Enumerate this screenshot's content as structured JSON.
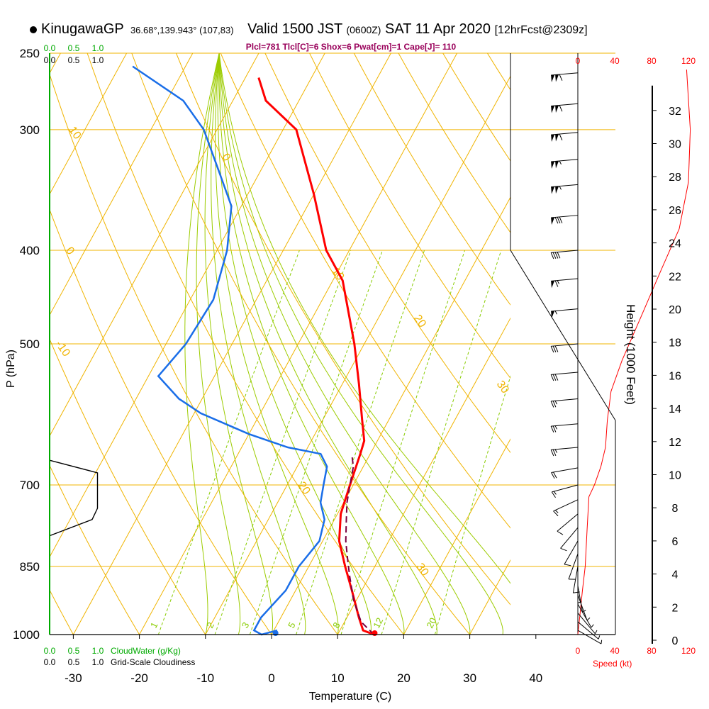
{
  "header": {
    "station": "KinugawaGP",
    "coords": "36.68°,139.943° (107,83)",
    "valid_prefix": "Valid 1500 JST",
    "valid_utc": "(0600Z)",
    "valid_date": "SAT 11 Apr 2020",
    "forecast": "[12hrFcst@2309z]"
  },
  "indices": "Plcl=781 Tlcl[C]=6 Shox=6 Pwat[cm]=1 Cape[J]= 110",
  "colors": {
    "temperature": "#ff0000",
    "dewpoint": "#1a6ee8",
    "parcel": "#7a0040",
    "isobar": "#f0b400",
    "dry_adiabat": "#f0b400",
    "moist_adiabat": "#9ccc00",
    "mixing_ratio": "#88cc00",
    "cloud": "#00aa00",
    "speed": "#ff0000",
    "indices": "#99005a"
  },
  "chart_data": {
    "type": "skew-t",
    "title": "KinugawaGP Valid 1500 JST (0600Z) SAT 11 Apr 2020",
    "xlabel": "Temperature (C)",
    "ylabel": "P (hPa)",
    "right_label": "Height (1000 Feet)",
    "xlim": [
      -34,
      48
    ],
    "ylim": [
      1000,
      250
    ],
    "pressure_ticks": [
      "250",
      "300",
      "400",
      "500",
      "700",
      "850",
      "1000"
    ],
    "isobars": [
      250,
      300,
      400,
      500,
      700,
      850,
      1000
    ],
    "temperature_ticks": [
      "-30",
      "-20",
      "-10",
      "0",
      "10",
      "20",
      "30",
      "40"
    ],
    "temperature_values": [
      -30,
      -20,
      -10,
      0,
      10,
      20,
      30,
      40
    ],
    "height_ticks": [
      "0",
      "2",
      "4",
      "6",
      "8",
      "10",
      "12",
      "14",
      "16",
      "18",
      "20",
      "22",
      "24",
      "26",
      "28",
      "30",
      "32"
    ],
    "height_values": [
      0,
      2,
      4,
      6,
      8,
      10,
      12,
      14,
      16,
      18,
      20,
      22,
      24,
      26,
      28,
      30,
      32
    ],
    "temperature_profile": [
      {
        "t": 15.5,
        "p": 1000
      },
      {
        "t": 13.5,
        "p": 990
      },
      {
        "t": 11.8,
        "p": 960
      },
      {
        "t": 8.5,
        "p": 900
      },
      {
        "t": 5.5,
        "p": 850
      },
      {
        "t": 2.5,
        "p": 800
      },
      {
        "t": 0.5,
        "p": 750
      },
      {
        "t": -0.5,
        "p": 700
      },
      {
        "t": -1.5,
        "p": 650
      },
      {
        "t": -2.0,
        "p": 630
      },
      {
        "t": -4.0,
        "p": 600
      },
      {
        "t": -7.5,
        "p": 550
      },
      {
        "t": -11.5,
        "p": 500
      },
      {
        "t": -18.5,
        "p": 430
      },
      {
        "t": -23.5,
        "p": 400
      },
      {
        "t": -30.0,
        "p": 350
      },
      {
        "t": -38.0,
        "p": 300
      },
      {
        "t": -45.0,
        "p": 280
      },
      {
        "t": -48.0,
        "p": 265
      }
    ],
    "dewpoint_profile": [
      {
        "t": 0.5,
        "p": 990
      },
      {
        "t": -1.5,
        "p": 1000
      },
      {
        "t": -3.0,
        "p": 990
      },
      {
        "t": -3.0,
        "p": 960
      },
      {
        "t": -1.5,
        "p": 900
      },
      {
        "t": -1.5,
        "p": 850
      },
      {
        "t": -0.5,
        "p": 800
      },
      {
        "t": -1.5,
        "p": 760
      },
      {
        "t": -3.5,
        "p": 730
      },
      {
        "t": -4.5,
        "p": 700
      },
      {
        "t": -5.5,
        "p": 670
      },
      {
        "t": -7.5,
        "p": 650
      },
      {
        "t": -13.0,
        "p": 640
      },
      {
        "t": -20.0,
        "p": 620
      },
      {
        "t": -29.0,
        "p": 590
      },
      {
        "t": -33.5,
        "p": 570
      },
      {
        "t": -38.5,
        "p": 540
      },
      {
        "t": -37.0,
        "p": 500
      },
      {
        "t": -36.5,
        "p": 450
      },
      {
        "t": -38.5,
        "p": 400
      },
      {
        "t": -41.5,
        "p": 360
      },
      {
        "t": -46.5,
        "p": 330
      },
      {
        "t": -52.0,
        "p": 300
      },
      {
        "t": -57.5,
        "p": 280
      },
      {
        "t": -68.0,
        "p": 258
      }
    ],
    "parcel_profile": [
      {
        "t": 15.5,
        "p": 1000
      },
      {
        "t": 12.5,
        "p": 970
      },
      {
        "t": 9.5,
        "p": 920
      },
      {
        "t": 7.0,
        "p": 870
      },
      {
        "t": 5.5,
        "p": 840
      },
      {
        "t": 3.5,
        "p": 800
      },
      {
        "t": 1.8,
        "p": 760
      },
      {
        "t": 0.5,
        "p": 730
      },
      {
        "t": -0.5,
        "p": 700
      },
      {
        "t": -1.5,
        "p": 670
      },
      {
        "t": -2.8,
        "p": 650
      }
    ],
    "surface_temperature": 15.5,
    "surface_dewpoint": 0.5,
    "dry_adiabats": [
      {
        "label": "10",
        "theta": 10
      },
      {
        "label": "0",
        "theta": 0
      },
      {
        "label": "-10",
        "theta": -10
      },
      {
        "label": "20",
        "theta": 20
      },
      {
        "label": "30",
        "theta": 30
      },
      {
        "label": "0",
        "theta": 40
      },
      {
        "label": "10",
        "theta": 50
      },
      {
        "label": "20",
        "theta": 60
      },
      {
        "label": "30",
        "theta": 70
      }
    ],
    "mixing_ratio_lines": [
      "1",
      "2",
      "3",
      "5",
      "8",
      "12",
      "20"
    ],
    "mixing_ratio_values": [
      1,
      2,
      3,
      5,
      8,
      12,
      20
    ],
    "cloud_ticks": [
      "0.0",
      "0.5",
      "1.0"
    ],
    "cloud_water_label": "CloudWater (g/Kg)",
    "cloudiness_label": "Grid-Scale Cloudiness",
    "cloudiness_profile": [
      {
        "v": 0.0,
        "p": 660
      },
      {
        "v": 0.9,
        "p": 680
      },
      {
        "v": 0.9,
        "p": 740
      },
      {
        "v": 0.8,
        "p": 760
      },
      {
        "v": 0.0,
        "p": 790
      }
    ],
    "speed_ticks": [
      "0",
      "40",
      "80",
      "120"
    ],
    "speed_values": [
      0,
      40,
      80,
      120
    ],
    "speed_label": "Speed (kt)",
    "wind_speed_profile": [
      {
        "kt": 0,
        "p": 1000
      },
      {
        "kt": 2,
        "p": 960
      },
      {
        "kt": 5,
        "p": 900
      },
      {
        "kt": 8,
        "p": 850
      },
      {
        "kt": 10,
        "p": 780
      },
      {
        "kt": 12,
        "p": 720
      },
      {
        "kt": 18,
        "p": 700
      },
      {
        "kt": 25,
        "p": 670
      },
      {
        "kt": 30,
        "p": 640
      },
      {
        "kt": 32,
        "p": 600
      },
      {
        "kt": 36,
        "p": 560
      },
      {
        "kt": 48,
        "p": 520
      },
      {
        "kt": 68,
        "p": 470
      },
      {
        "kt": 90,
        "p": 420
      },
      {
        "kt": 110,
        "p": 380
      },
      {
        "kt": 120,
        "p": 340
      },
      {
        "kt": 122,
        "p": 300
      },
      {
        "kt": 118,
        "p": 260
      }
    ],
    "wind_barbs": [
      {
        "p": 262,
        "kt": 110,
        "dir": 265
      },
      {
        "p": 282,
        "kt": 110,
        "dir": 265
      },
      {
        "p": 302,
        "kt": 110,
        "dir": 265
      },
      {
        "p": 322,
        "kt": 105,
        "dir": 265
      },
      {
        "p": 342,
        "kt": 105,
        "dir": 265
      },
      {
        "p": 368,
        "kt": 80,
        "dir": 265
      },
      {
        "p": 400,
        "kt": 40,
        "dir": 265
      },
      {
        "p": 428,
        "kt": 65,
        "dir": 265
      },
      {
        "p": 460,
        "kt": 55,
        "dir": 265
      },
      {
        "p": 500,
        "kt": 30,
        "dir": 265
      },
      {
        "p": 535,
        "kt": 30,
        "dir": 265
      },
      {
        "p": 570,
        "kt": 25,
        "dir": 265
      },
      {
        "p": 605,
        "kt": 25,
        "dir": 265
      },
      {
        "p": 640,
        "kt": 25,
        "dir": 265
      },
      {
        "p": 672,
        "kt": 20,
        "dir": 260
      },
      {
        "p": 700,
        "kt": 15,
        "dir": 255
      },
      {
        "p": 725,
        "kt": 15,
        "dir": 245
      },
      {
        "p": 750,
        "kt": 10,
        "dir": 230
      },
      {
        "p": 775,
        "kt": 10,
        "dir": 220
      },
      {
        "p": 800,
        "kt": 10,
        "dir": 210
      },
      {
        "p": 825,
        "kt": 10,
        "dir": 200
      },
      {
        "p": 850,
        "kt": 10,
        "dir": 190
      },
      {
        "p": 870,
        "kt": 5,
        "dir": 180
      },
      {
        "p": 890,
        "kt": 5,
        "dir": 170
      },
      {
        "p": 910,
        "kt": 5,
        "dir": 160
      },
      {
        "p": 930,
        "kt": 5,
        "dir": 150
      },
      {
        "p": 950,
        "kt": 5,
        "dir": 140
      },
      {
        "p": 970,
        "kt": 5,
        "dir": 130
      },
      {
        "p": 990,
        "kt": 5,
        "dir": 120
      }
    ]
  }
}
